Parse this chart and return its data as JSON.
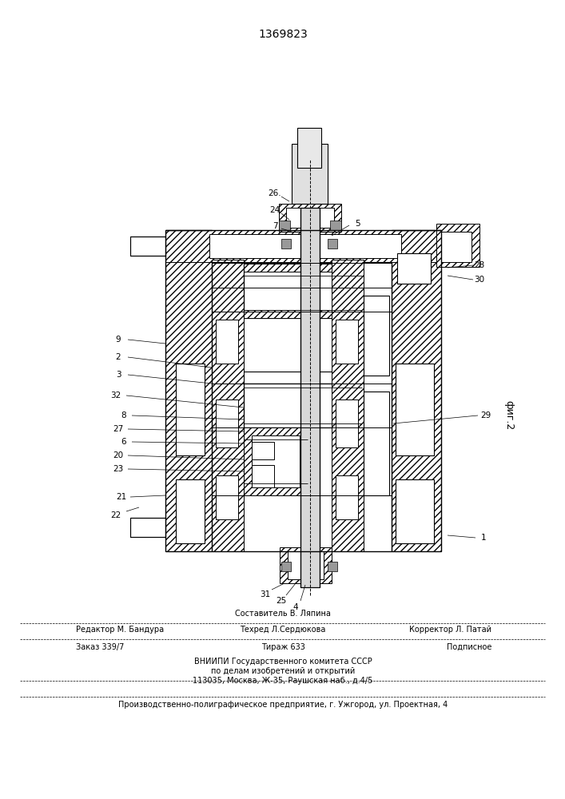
{
  "patent_number": "1369823",
  "fig_label": "фиг.2",
  "bg": "#ffffff",
  "lc": "#000000",
  "footer": [
    [
      "Составитель В. Ляпина",
      0.5,
      "center"
    ],
    [
      "Редактор М. Бандура",
      0.13,
      "left"
    ],
    [
      "Техред Л.Сердюкова",
      0.5,
      "center"
    ],
    [
      "Корректор Л. Патай",
      0.87,
      "right"
    ],
    [
      "Заказ 339/7",
      0.13,
      "left"
    ],
    [
      "Тираж 633",
      0.5,
      "center"
    ],
    [
      "Подписное",
      0.87,
      "right"
    ],
    [
      "ВНИИПИ Государственного комитета СССР",
      0.5,
      "center"
    ],
    [
      "по делам изобретений и открытий",
      0.5,
      "center"
    ],
    [
      "113035, Москва, Ж-35, Раушская наб., д.4/5",
      0.5,
      "center"
    ],
    [
      "Производственно-полиграфическое предприятие, г. Ужгород, ул. Проектная, 4",
      0.5,
      "center"
    ]
  ]
}
